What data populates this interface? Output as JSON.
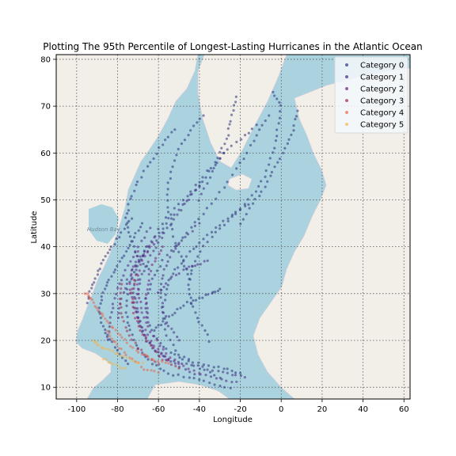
{
  "chart_data": {
    "type": "scatter",
    "title": "Plotting The 95th Percentile of Longest-Lasting Hurricanes in the Atlantic Ocean",
    "xlabel": "Longitude",
    "ylabel": "Latitude",
    "xlim": [
      -110,
      63
    ],
    "ylim": [
      7.5,
      81
    ],
    "xticks": [
      -100,
      -80,
      -60,
      -40,
      -20,
      0,
      20,
      40,
      60
    ],
    "yticks": [
      10,
      20,
      30,
      40,
      50,
      60,
      70,
      80
    ],
    "grid": true,
    "legend_position": "top-right",
    "basemap_label": "Hudson Bay",
    "series": [
      {
        "name": "Category 0",
        "color": "#2b2f7a",
        "tracks": [
          [
            [
              -20,
              13
            ],
            [
              -28,
              14
            ],
            [
              -38,
              15
            ],
            [
              -48,
              16
            ],
            [
              -56,
              18
            ],
            [
              -62,
              21
            ],
            [
              -66,
              25
            ],
            [
              -66,
              29
            ],
            [
              -63,
              33
            ],
            [
              -58,
              37
            ],
            [
              -50,
              41
            ],
            [
              -42,
              45
            ],
            [
              -34,
              49
            ],
            [
              -26,
              54
            ],
            [
              -18,
              59
            ],
            [
              -12,
              64
            ],
            [
              -6,
              68
            ]
          ],
          [
            [
              -25,
              10
            ],
            [
              -35,
              11
            ],
            [
              -45,
              12
            ],
            [
              -55,
              13
            ],
            [
              -63,
              15
            ],
            [
              -70,
              18
            ],
            [
              -74,
              22
            ],
            [
              -76,
              26
            ],
            [
              -75,
              31
            ],
            [
              -71,
              36
            ],
            [
              -65,
              40
            ],
            [
              -58,
              44
            ],
            [
              -50,
              48
            ],
            [
              -42,
              52
            ],
            [
              -35,
              56
            ],
            [
              -28,
              60
            ]
          ],
          [
            [
              -30,
              12
            ],
            [
              -40,
              14
            ],
            [
              -50,
              17
            ],
            [
              -56,
              21
            ],
            [
              -58,
              26
            ],
            [
              -56,
              31
            ],
            [
              -52,
              35
            ],
            [
              -46,
              38
            ],
            [
              -40,
              41
            ],
            [
              -32,
              44
            ],
            [
              -24,
              47
            ],
            [
              -16,
              49
            ]
          ],
          [
            [
              -35,
              20
            ],
            [
              -40,
              24
            ],
            [
              -44,
              28
            ],
            [
              -45,
              32
            ],
            [
              -43,
              36
            ],
            [
              -38,
              40
            ],
            [
              -30,
              44
            ],
            [
              -22,
              47
            ],
            [
              -14,
              51
            ],
            [
              -8,
              55
            ],
            [
              -4,
              60
            ],
            [
              -2,
              65
            ],
            [
              0,
              70
            ],
            [
              -4,
              73
            ]
          ],
          [
            [
              -60,
              44
            ],
            [
              -52,
              48
            ],
            [
              -44,
              52
            ],
            [
              -36,
              56
            ],
            [
              -28,
              60
            ],
            [
              -20,
              63
            ],
            [
              -12,
              66
            ]
          ],
          [
            [
              -45,
              33
            ],
            [
              -48,
              37
            ],
            [
              -52,
              41
            ],
            [
              -55,
              46
            ],
            [
              -56,
              51
            ],
            [
              -54,
              56
            ],
            [
              -50,
              61
            ],
            [
              -44,
              65
            ],
            [
              -38,
              68
            ]
          ],
          [
            [
              -65,
              35
            ],
            [
              -70,
              38
            ],
            [
              -74,
              42
            ],
            [
              -76,
              46
            ],
            [
              -74,
              50
            ],
            [
              -70,
              54
            ],
            [
              -64,
              58
            ],
            [
              -58,
              62
            ],
            [
              -52,
              65
            ]
          ],
          [
            [
              -75,
              15
            ],
            [
              -80,
              18
            ],
            [
              -85,
              21
            ],
            [
              -88,
              24
            ],
            [
              -89,
              27
            ],
            [
              -87,
              30
            ],
            [
              -84,
              33
            ],
            [
              -80,
              36
            ],
            [
              -76,
              39
            ],
            [
              -72,
              42
            ],
            [
              -68,
              45
            ]
          ],
          [
            [
              -20,
              45
            ],
            [
              -14,
              49
            ],
            [
              -8,
              53
            ],
            [
              -3,
              57
            ],
            [
              2,
              61
            ],
            [
              6,
              65
            ],
            [
              8,
              69
            ]
          ],
          [
            [
              -62,
              22
            ],
            [
              -58,
              24
            ],
            [
              -52,
              26
            ],
            [
              -46,
              28
            ],
            [
              -40,
              29
            ],
            [
              -34,
              30
            ],
            [
              -30,
              31
            ]
          ],
          [
            [
              -95,
              28
            ],
            [
              -93,
              31
            ],
            [
              -90,
              34
            ],
            [
              -87,
              37
            ],
            [
              -83,
              40
            ],
            [
              -78,
              43
            ],
            [
              -73,
              46
            ]
          ],
          [
            [
              -40,
              50
            ],
            [
              -35,
              55
            ],
            [
              -30,
              60
            ],
            [
              -26,
              64
            ],
            [
              -24,
              68
            ],
            [
              -22,
              72
            ]
          ]
        ]
      },
      {
        "name": "Category 1",
        "color": "#44277f",
        "tracks": [
          [
            [
              -18,
              12
            ],
            [
              -26,
              13
            ],
            [
              -36,
              14
            ],
            [
              -46,
              15
            ],
            [
              -55,
              16
            ],
            [
              -62,
              18
            ],
            [
              -67,
              21
            ],
            [
              -70,
              25
            ],
            [
              -71,
              29
            ],
            [
              -69,
              33
            ],
            [
              -65,
              37
            ],
            [
              -60,
              41
            ],
            [
              -54,
              45
            ],
            [
              -47,
              49
            ],
            [
              -40,
              53
            ]
          ],
          [
            [
              -22,
              11
            ],
            [
              -32,
              12
            ],
            [
              -42,
              13
            ],
            [
              -52,
              15
            ],
            [
              -60,
              17
            ],
            [
              -66,
              20
            ],
            [
              -70,
              24
            ],
            [
              -72,
              28
            ],
            [
              -72,
              32
            ],
            [
              -70,
              36
            ],
            [
              -66,
              40
            ]
          ],
          [
            [
              -50,
              20
            ],
            [
              -55,
              23
            ],
            [
              -58,
              27
            ],
            [
              -59,
              31
            ],
            [
              -57,
              35
            ],
            [
              -53,
              39
            ],
            [
              -47,
              42
            ],
            [
              -40,
              45
            ]
          ],
          [
            [
              -80,
              25
            ],
            [
              -78,
              29
            ],
            [
              -75,
              33
            ],
            [
              -70,
              37
            ],
            [
              -64,
              40
            ],
            [
              -58,
              43
            ]
          ],
          [
            [
              -60,
              30
            ],
            [
              -55,
              33
            ],
            [
              -48,
              35
            ],
            [
              -42,
              36
            ],
            [
              -36,
              37
            ]
          ],
          [
            [
              -85,
              20
            ],
            [
              -84,
              24
            ],
            [
              -82,
              28
            ],
            [
              -79,
              32
            ],
            [
              -75,
              36
            ],
            [
              -70,
              40
            ],
            [
              -64,
              44
            ]
          ]
        ]
      },
      {
        "name": "Category 2",
        "color": "#6f1e82",
        "tracks": [
          [
            [
              -40,
              13
            ],
            [
              -50,
              15
            ],
            [
              -58,
              18
            ],
            [
              -64,
              22
            ],
            [
              -68,
              26
            ],
            [
              -70,
              30
            ],
            [
              -70,
              34
            ],
            [
              -67,
              38
            ],
            [
              -62,
              42
            ]
          ],
          [
            [
              -55,
              16
            ],
            [
              -62,
              19
            ],
            [
              -68,
              23
            ],
            [
              -72,
              27
            ],
            [
              -74,
              31
            ],
            [
              -73,
              35
            ],
            [
              -70,
              39
            ]
          ],
          [
            [
              -65,
              25
            ],
            [
              -66,
              29
            ],
            [
              -65,
              33
            ],
            [
              -62,
              37
            ],
            [
              -58,
              40
            ]
          ]
        ]
      },
      {
        "name": "Category 3",
        "color": "#a5234a",
        "tracks": [
          [
            [
              -50,
              14
            ],
            [
              -58,
              16
            ],
            [
              -64,
              19
            ],
            [
              -69,
              22
            ],
            [
              -72,
              26
            ],
            [
              -73,
              30
            ],
            [
              -71,
              34
            ]
          ],
          [
            [
              -60,
              15
            ],
            [
              -67,
              17
            ],
            [
              -73,
              20
            ],
            [
              -77,
              24
            ],
            [
              -79,
              28
            ],
            [
              -78,
              32
            ]
          ]
        ]
      },
      {
        "name": "Category 4",
        "color": "#e8654a",
        "tracks": [
          [
            [
              -55,
              15
            ],
            [
              -62,
              16
            ],
            [
              -68,
              17
            ],
            [
              -74,
              19
            ],
            [
              -79,
              21
            ],
            [
              -83,
              23
            ],
            [
              -87,
              25
            ],
            [
              -90,
              27
            ],
            [
              -93,
              29
            ],
            [
              -96,
              30
            ]
          ],
          [
            [
              -60,
              13
            ],
            [
              -67,
              14
            ],
            [
              -73,
              16
            ],
            [
              -78,
              18
            ],
            [
              -82,
              20
            ],
            [
              -85,
              22
            ]
          ]
        ]
      },
      {
        "name": "Category 5",
        "color": "#f4b34a",
        "tracks": [
          [
            [
              -68,
              15
            ],
            [
              -74,
              16
            ],
            [
              -80,
              17
            ],
            [
              -85,
              18
            ],
            [
              -89,
              19
            ],
            [
              -92,
              20
            ]
          ],
          [
            [
              -76,
              14
            ],
            [
              -82,
              15
            ],
            [
              -87,
              16
            ]
          ]
        ]
      }
    ]
  }
}
